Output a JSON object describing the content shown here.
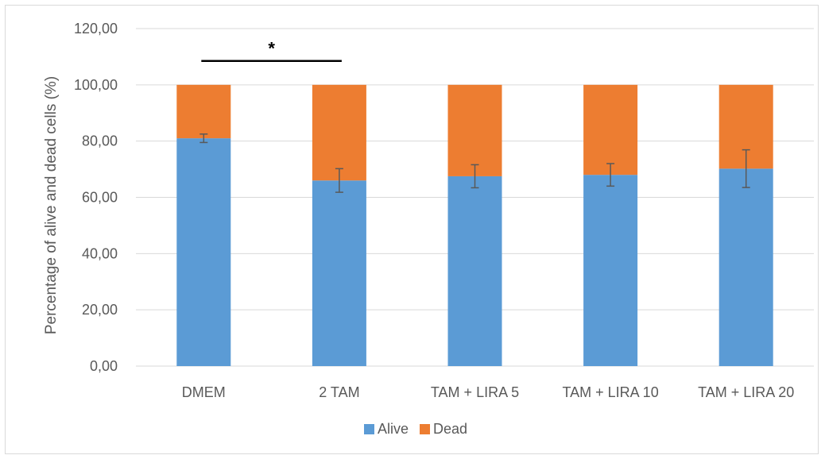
{
  "chart_data": {
    "type": "bar",
    "stacked": true,
    "title": "",
    "xlabel": "",
    "ylabel": "Percentage of alive and dead cells (%)",
    "ylim": [
      0,
      120
    ],
    "yticks": [
      "0,00",
      "20,00",
      "40,00",
      "60,00",
      "80,00",
      "100,00",
      "120,00"
    ],
    "ytick_values": [
      0,
      20,
      40,
      60,
      80,
      100,
      120
    ],
    "grid": true,
    "legend_position": "bottom",
    "categories": [
      "DMEM",
      "2 TAM",
      "TAM + LIRA 5",
      "TAM + LIRA 10",
      "TAM + LIRA 20"
    ],
    "series": [
      {
        "name": "Alive",
        "color": "#5b9bd5",
        "values": [
          81,
          66,
          67.5,
          68,
          70.2
        ],
        "error": [
          1.5,
          4.2,
          4.1,
          4.0,
          6.7
        ]
      },
      {
        "name": "Dead",
        "color": "#ed7d31",
        "values": [
          19,
          34,
          32.5,
          32,
          29.8
        ]
      }
    ],
    "annotations": [
      {
        "text": "*",
        "from_category": "DMEM",
        "to_category": "2 TAM",
        "y": 108.5
      }
    ]
  }
}
